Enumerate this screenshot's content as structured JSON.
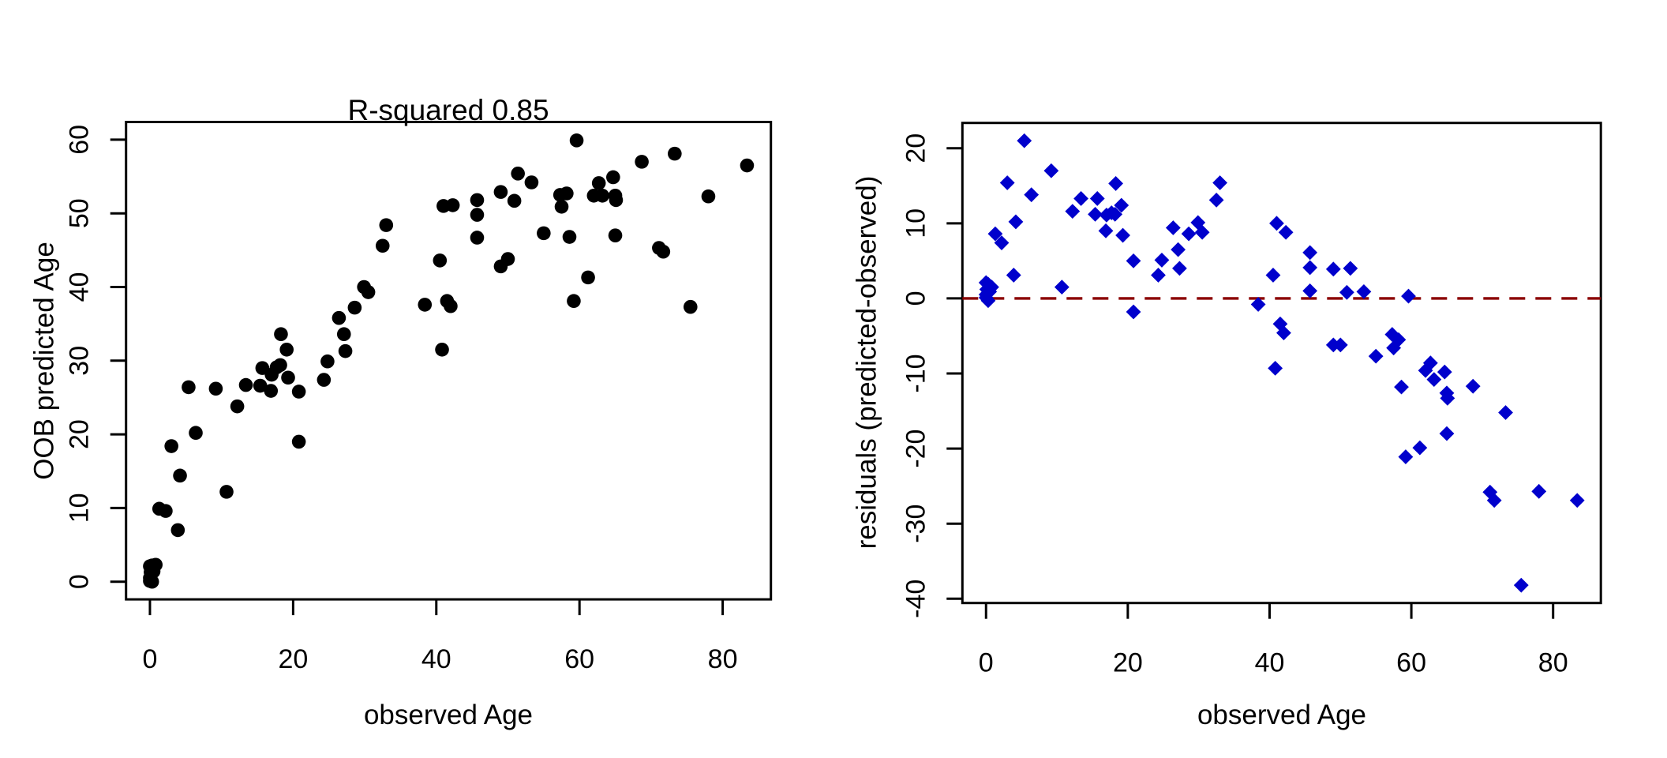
{
  "figure": {
    "background": "#ffffff",
    "text_color": "#000000"
  },
  "chart_data": [
    {
      "id": "predicted-vs-observed",
      "type": "scatter",
      "title": "R-squared 0.85",
      "xlabel": "observed Age",
      "ylabel": "OOB predicted Age",
      "marker": "circle",
      "marker_color": "#000000",
      "xlim": [
        0,
        83.4
      ],
      "ylim": [
        0,
        60
      ],
      "xticks": [
        0,
        20,
        40,
        60,
        80
      ],
      "yticks": [
        0,
        10,
        20,
        30,
        40,
        50,
        60
      ],
      "grid": false,
      "points": [
        [
          0,
          2.1
        ],
        [
          0.3,
          2.2
        ],
        [
          0.8,
          2.3
        ],
        [
          0.1,
          1.3
        ],
        [
          0.5,
          1.4
        ],
        [
          0,
          0.5
        ],
        [
          0,
          0.1
        ],
        [
          0.3,
          0
        ],
        [
          1.3,
          9.9
        ],
        [
          2.2,
          9.6
        ],
        [
          3,
          18.4
        ],
        [
          3.9,
          7
        ],
        [
          4.2,
          14.4
        ],
        [
          5.4,
          26.4
        ],
        [
          6.4,
          20.2
        ],
        [
          9.2,
          26.2
        ],
        [
          10.7,
          12.2
        ],
        [
          12.2,
          23.8
        ],
        [
          13.4,
          26.7
        ],
        [
          15.4,
          26.6
        ],
        [
          15.7,
          29
        ],
        [
          16.9,
          25.9
        ],
        [
          17,
          28.1
        ],
        [
          17.7,
          29.1
        ],
        [
          18.2,
          29.4
        ],
        [
          18.3,
          33.6
        ],
        [
          19.1,
          31.5
        ],
        [
          19.3,
          27.7
        ],
        [
          20.8,
          25.8
        ],
        [
          20.8,
          19
        ],
        [
          24.3,
          27.4
        ],
        [
          24.8,
          29.9
        ],
        [
          26.4,
          35.8
        ],
        [
          27.1,
          33.6
        ],
        [
          27.3,
          31.3
        ],
        [
          28.6,
          37.2
        ],
        [
          29.9,
          40
        ],
        [
          30.5,
          39.3
        ],
        [
          32.5,
          45.6
        ],
        [
          33,
          48.4
        ],
        [
          38.4,
          37.6
        ],
        [
          40.5,
          43.6
        ],
        [
          41,
          51
        ],
        [
          40.8,
          31.5
        ],
        [
          41.5,
          38.1
        ],
        [
          42.3,
          51.1
        ],
        [
          42,
          37.4
        ],
        [
          45.7,
          51.8
        ],
        [
          45.7,
          49.8
        ],
        [
          45.7,
          46.7
        ],
        [
          49,
          52.9
        ],
        [
          49,
          42.8
        ],
        [
          50,
          43.8
        ],
        [
          50.9,
          51.7
        ],
        [
          51.4,
          55.4
        ],
        [
          53.3,
          54.2
        ],
        [
          55,
          47.3
        ],
        [
          57.3,
          52.5
        ],
        [
          57.5,
          50.9
        ],
        [
          58.2,
          52.7
        ],
        [
          58.6,
          46.8
        ],
        [
          59.2,
          38.1
        ],
        [
          59.6,
          59.9
        ],
        [
          61.2,
          41.3
        ],
        [
          62,
          52.4
        ],
        [
          62.7,
          54.1
        ],
        [
          63.2,
          52.4
        ],
        [
          64.7,
          54.9
        ],
        [
          65,
          52.4
        ],
        [
          65.1,
          51.8
        ],
        [
          65,
          47
        ],
        [
          68.7,
          57
        ],
        [
          71.1,
          45.3
        ],
        [
          71.7,
          44.8
        ],
        [
          73.3,
          58.1
        ],
        [
          75.5,
          37.3
        ],
        [
          78,
          52.3
        ],
        [
          83.4,
          56.5
        ]
      ]
    },
    {
      "id": "residuals-vs-observed",
      "type": "scatter",
      "title": "",
      "xlabel": "observed Age",
      "ylabel": "residuals (predicted-observed)",
      "marker": "diamond",
      "marker_color": "#0000CC",
      "xlim": [
        0,
        83.4
      ],
      "ylim": [
        -38.2,
        21
      ],
      "xticks": [
        0,
        20,
        40,
        60,
        80
      ],
      "yticks": [
        -40,
        -30,
        -20,
        -10,
        0,
        10,
        20
      ],
      "grid": false,
      "refline": {
        "y": 0,
        "color": "#8B0000",
        "style": "dashed"
      },
      "points": [
        [
          0,
          2.1
        ],
        [
          0.3,
          1.9
        ],
        [
          0.8,
          1.5
        ],
        [
          0.1,
          1.2
        ],
        [
          0.5,
          0.9
        ],
        [
          0,
          0.5
        ],
        [
          0,
          0.1
        ],
        [
          0.3,
          -0.3
        ],
        [
          1.3,
          8.6
        ],
        [
          2.2,
          7.4
        ],
        [
          3,
          15.4
        ],
        [
          3.9,
          3.1
        ],
        [
          4.2,
          10.2
        ],
        [
          5.4,
          21
        ],
        [
          6.4,
          13.8
        ],
        [
          9.2,
          17
        ],
        [
          10.7,
          1.5
        ],
        [
          12.2,
          11.6
        ],
        [
          13.4,
          13.3
        ],
        [
          15.4,
          11.2
        ],
        [
          15.7,
          13.3
        ],
        [
          16.9,
          9
        ],
        [
          17,
          11.1
        ],
        [
          17.7,
          11.4
        ],
        [
          18.2,
          11.2
        ],
        [
          18.3,
          15.3
        ],
        [
          19.1,
          12.4
        ],
        [
          19.3,
          8.4
        ],
        [
          20.8,
          5
        ],
        [
          20.8,
          -1.8
        ],
        [
          24.3,
          3.1
        ],
        [
          24.8,
          5.1
        ],
        [
          26.4,
          9.4
        ],
        [
          27.1,
          6.5
        ],
        [
          27.3,
          4
        ],
        [
          28.6,
          8.6
        ],
        [
          29.9,
          10.1
        ],
        [
          30.5,
          8.8
        ],
        [
          32.5,
          13.1
        ],
        [
          33,
          15.4
        ],
        [
          38.4,
          -0.8
        ],
        [
          40.5,
          3.1
        ],
        [
          41,
          10
        ],
        [
          40.8,
          -9.3
        ],
        [
          41.5,
          -3.4
        ],
        [
          42.3,
          8.8
        ],
        [
          42,
          -4.6
        ],
        [
          45.7,
          6.1
        ],
        [
          45.7,
          4.1
        ],
        [
          45.7,
          1
        ],
        [
          49,
          3.9
        ],
        [
          49,
          -6.2
        ],
        [
          50,
          -6.2
        ],
        [
          50.9,
          0.8
        ],
        [
          51.4,
          4
        ],
        [
          53.3,
          0.9
        ],
        [
          55,
          -7.7
        ],
        [
          57.3,
          -4.8
        ],
        [
          57.5,
          -6.6
        ],
        [
          58.2,
          -5.5
        ],
        [
          58.6,
          -11.8
        ],
        [
          59.2,
          -21.1
        ],
        [
          59.6,
          0.3
        ],
        [
          61.2,
          -19.9
        ],
        [
          62,
          -9.6
        ],
        [
          62.7,
          -8.6
        ],
        [
          63.2,
          -10.8
        ],
        [
          64.7,
          -9.8
        ],
        [
          65,
          -12.6
        ],
        [
          65.1,
          -13.3
        ],
        [
          65,
          -18
        ],
        [
          68.7,
          -11.7
        ],
        [
          71.1,
          -25.8
        ],
        [
          71.7,
          -26.9
        ],
        [
          73.3,
          -15.2
        ],
        [
          75.5,
          -38.2
        ],
        [
          78,
          -25.7
        ],
        [
          83.4,
          -26.9
        ]
      ]
    }
  ]
}
